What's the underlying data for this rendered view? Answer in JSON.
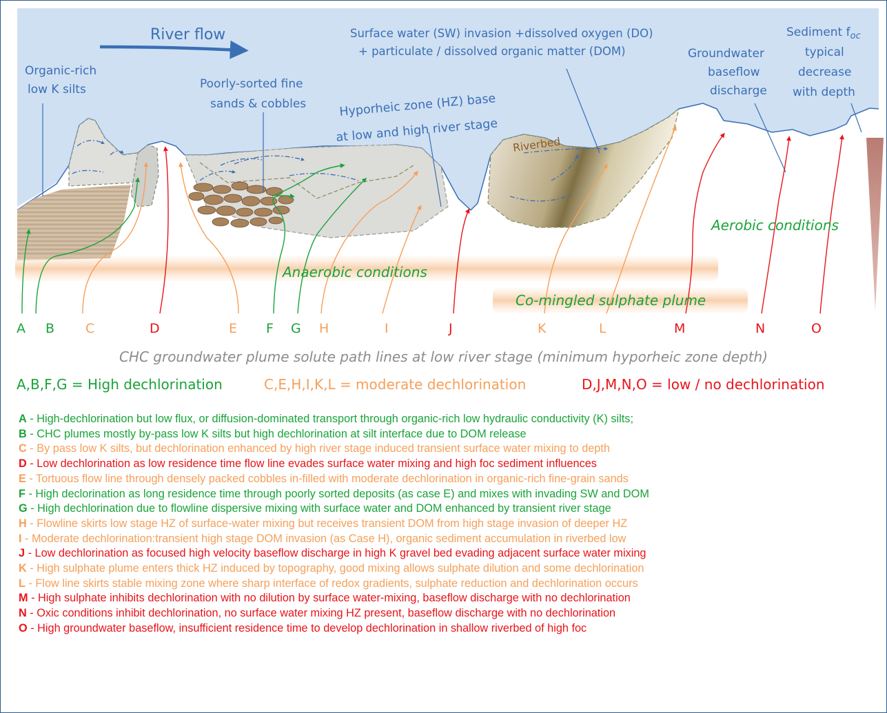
{
  "labels": {
    "river_flow": "River flow",
    "organic_silts": [
      "Organic-rich",
      "low K silts"
    ],
    "poorly_sorted": [
      "Poorly-sorted fine",
      "sands & cobbles"
    ],
    "sw_invasion": [
      "Surface water (SW) invasion +dissolved oxygen (DO)",
      "+ particulate / dissolved organic matter (DOM)"
    ],
    "hz_base": [
      "Hyporheic zone (HZ) base",
      "at low and high river stage"
    ],
    "groundwater_baseflow": [
      "Groundwater",
      "baseflow",
      "discharge"
    ],
    "sediment_foc": [
      "Sediment f",
      "oc",
      "typical",
      "decrease",
      "with depth"
    ],
    "riverbed": "Riverbed",
    "aerobic": "Aerobic conditions",
    "anaerobic": "Anaerobic conditions",
    "sulphate": "Co-mingled sulphate plume"
  },
  "path_letters": [
    "A",
    "B",
    "C",
    "D",
    "E",
    "F",
    "G",
    "H",
    "I",
    "J",
    "K",
    "L",
    "M",
    "N",
    "O"
  ],
  "colors": {
    "high": "#1aa33a",
    "moderate": "#f5a05a",
    "low": "#e8141a",
    "river": "#cfe0f3",
    "label_blue": "#3a6fb4"
  },
  "caption": "CHC groundwater plume solute path lines at low river stage (minimum hyporheic zone depth)",
  "summary": {
    "high": "A,B,F,G = High dechlorination",
    "moderate": "C,E,H,I,K,L = moderate dechlorination",
    "low": "D,J,M,N,O = low / no dechlorination"
  },
  "notes": [
    {
      "letter": "A",
      "text": " - High-dechlorination but low flux, or diffusion-dominated transport through organic-rich low hydraulic conductivity (K) silts;",
      "level": "high"
    },
    {
      "letter": "B",
      "text": " - CHC plumes mostly by-pass low K silts but high dechlorination at silt interface due to DOM release",
      "level": "high"
    },
    {
      "letter": "C",
      "text": " - By pass low K silts, but dechlorination enhanced by high river stage induced transient surface water mixing to depth",
      "level": "moderate"
    },
    {
      "letter": "D",
      "text": " - Low dechlorination as low residence time flow line evades surface water mixing and high foc sediment influences",
      "level": "low"
    },
    {
      "letter": "E",
      "text": " - Tortuous flow line through densely packed cobbles in-filled with moderate dechlorination in organic-rich fine-grain sands",
      "level": "moderate"
    },
    {
      "letter": "F",
      "text": " - High declorination as long residence time through poorly sorted deposits (as case E) and mixes with invading SW and DOM",
      "level": "high"
    },
    {
      "letter": "G",
      "text": " - High dechlorination  due to flowline dispersive mixing with surface water and DOM enhanced by transient  river stage",
      "level": "high"
    },
    {
      "letter": "H",
      "text": " - Flowline skirts low stage HZ of surface-water mixing but receives transient DOM from high stage invasion of deeper HZ",
      "level": "moderate"
    },
    {
      "letter": "I",
      "text": " - Moderate dechlorination:transient high stage DOM invasion (as Case H), organic sediment accumulation in riverbed low",
      "level": "moderate"
    },
    {
      "letter": "J",
      "text": " - Low dechlorination as focused high velocity baseflow discharge in high K gravel bed evading adjacent surface water mixing",
      "level": "low"
    },
    {
      "letter": "K",
      "text": " - High sulphate plume enters thick HZ induced by topography, good mixing allows sulphate dilution and some dechlorination",
      "level": "moderate"
    },
    {
      "letter": "L",
      "text": " - Flow line skirts stable mixing zone where sharp interface of redox gradients, sulphate reduction and dechlorination occurs",
      "level": "moderate"
    },
    {
      "letter": "M",
      "text": " - High sulphate inhibits  dechlorination with no dilution by surface water-mixing, baseflow discharge with no dechlorination",
      "level": "low"
    },
    {
      "letter": "N",
      "text": " - Oxic conditions inhibit dechlorination, no surface water mixing HZ present, baseflow discharge with no dechlorination",
      "level": "low"
    },
    {
      "letter": "O",
      "text": " -  High groundwater baseflow, insufficient residence time to develop dechlorination in shallow riverbed of high foc",
      "level": "low"
    }
  ]
}
